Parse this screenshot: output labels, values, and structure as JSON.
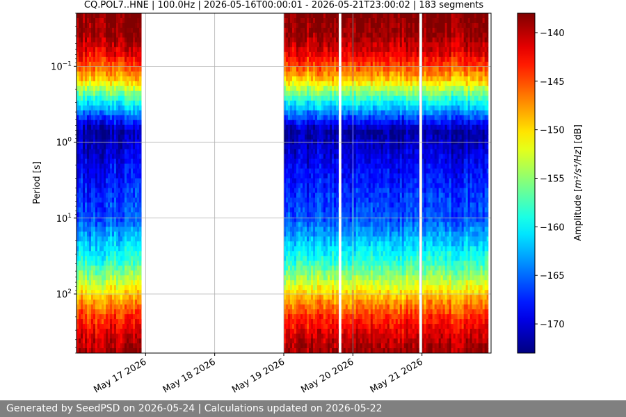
{
  "chart_data": {
    "type": "heatmap",
    "title": "CQ.POL7..HNE | 100.0Hz | 2026-05-16T00:00:01 - 2026-05-21T23:00:02 | 183 segments",
    "ylabel": "Period [s]",
    "y_scale": "log",
    "y_inverted": true,
    "ylim": [
      0.02,
      600
    ],
    "y_ticks": [
      {
        "value": 0.1,
        "base": "10",
        "exp": "−1"
      },
      {
        "value": 1,
        "base": "10",
        "exp": "0"
      },
      {
        "value": 10,
        "base": "10",
        "exp": "1"
      },
      {
        "value": 100,
        "base": "10",
        "exp": "2"
      }
    ],
    "xlim": [
      "2026-05-16T00:00:01",
      "2026-05-22T00:00:00"
    ],
    "x_ticks": [
      {
        "value": "2026-05-17",
        "label": "May 17 2026"
      },
      {
        "value": "2026-05-18",
        "label": "May 18 2026"
      },
      {
        "value": "2026-05-19",
        "label": "May 19 2026"
      },
      {
        "value": "2026-05-20",
        "label": "May 20 2026"
      },
      {
        "value": "2026-05-21",
        "label": "May 21 2026"
      }
    ],
    "grid": true,
    "data_segments": [
      {
        "start": "2026-05-16T00:00:01",
        "end": "2026-05-16T22:30:00"
      },
      {
        "start": "2026-05-19T00:00:00",
        "end": "2026-05-19T19:00:00"
      },
      {
        "start": "2026-05-19T20:00:00",
        "end": "2026-05-20T23:00:00"
      },
      {
        "start": "2026-05-21T00:00:00",
        "end": "2026-05-21T23:00:02"
      }
    ],
    "colorbar": {
      "label_prefix": "Amplitude [",
      "label_math": "m²/s⁴/Hz",
      "label_suffix": "] [dB]",
      "min": -173,
      "max": -138,
      "ticks": [
        -140,
        -145,
        -150,
        -155,
        -160,
        -165,
        -170
      ],
      "colormap": "jet"
    },
    "amplitude_profile": [
      {
        "period": 0.02,
        "db": -138
      },
      {
        "period": 0.04,
        "db": -139
      },
      {
        "period": 0.07,
        "db": -142
      },
      {
        "period": 0.1,
        "db": -145
      },
      {
        "period": 0.16,
        "db": -150
      },
      {
        "period": 0.2,
        "db": -154
      },
      {
        "period": 0.3,
        "db": -160
      },
      {
        "period": 0.5,
        "db": -167
      },
      {
        "period": 0.7,
        "db": -172
      },
      {
        "period": 1.0,
        "db": -171
      },
      {
        "period": 2.0,
        "db": -169
      },
      {
        "period": 5.0,
        "db": -167
      },
      {
        "period": 10,
        "db": -166
      },
      {
        "period": 20,
        "db": -162
      },
      {
        "period": 40,
        "db": -158
      },
      {
        "period": 80,
        "db": -152
      },
      {
        "period": 120,
        "db": -148
      },
      {
        "period": 200,
        "db": -144
      },
      {
        "period": 350,
        "db": -141
      },
      {
        "period": 600,
        "db": -139
      }
    ]
  },
  "footer": {
    "text": "Generated by SeedPSD on 2026-05-24 | Calculations updated on 2026-05-22"
  }
}
